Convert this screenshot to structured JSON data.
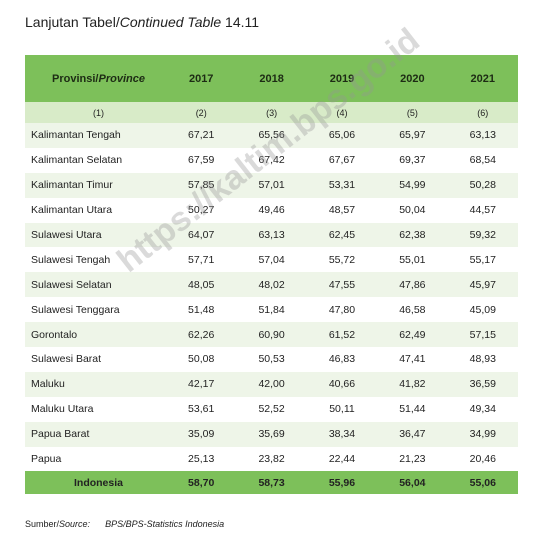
{
  "header": {
    "title_prefix": "Lanjutan Tabel/",
    "title_italic": "Continued Table",
    "title_suffix": " 14.11"
  },
  "table": {
    "province_label": "Provinsi/",
    "province_label_italic": "Province",
    "years": [
      "2017",
      "2018",
      "2019",
      "2020",
      "2021"
    ],
    "column_numbers": [
      "(1)",
      "(2)",
      "(3)",
      "(4)",
      "(5)",
      "(6)"
    ],
    "rows": [
      [
        "Kalimantan Tengah",
        "67,21",
        "65,56",
        "65,06",
        "65,97",
        "63,13"
      ],
      [
        "Kalimantan Selatan",
        "67,59",
        "67,42",
        "67,67",
        "69,37",
        "68,54"
      ],
      [
        "Kalimantan Timur",
        "57,85",
        "57,01",
        "53,31",
        "54,99",
        "50,28"
      ],
      [
        "Kalimantan Utara",
        "50,27",
        "49,46",
        "48,57",
        "50,04",
        "44,57"
      ],
      [
        "Sulawesi Utara",
        "64,07",
        "63,13",
        "62,45",
        "62,38",
        "59,32"
      ],
      [
        "Sulawesi Tengah",
        "57,71",
        "57,04",
        "55,72",
        "55,01",
        "55,17"
      ],
      [
        "Sulawesi Selatan",
        "48,05",
        "48,02",
        "47,55",
        "47,86",
        "45,97"
      ],
      [
        "Sulawesi Tenggara",
        "51,48",
        "51,84",
        "47,80",
        "46,58",
        "45,09"
      ],
      [
        "Gorontalo",
        "62,26",
        "60,90",
        "61,52",
        "62,49",
        "57,15"
      ],
      [
        "Sulawesi Barat",
        "50,08",
        "50,53",
        "46,83",
        "47,41",
        "48,93"
      ],
      [
        "Maluku",
        "42,17",
        "42,00",
        "40,66",
        "41,82",
        "36,59"
      ],
      [
        "Maluku Utara",
        "53,61",
        "52,52",
        "50,11",
        "51,44",
        "49,34"
      ],
      [
        "Papua Barat",
        "35,09",
        "35,69",
        "38,34",
        "36,47",
        "34,99"
      ],
      [
        "Papua",
        "25,13",
        "23,82",
        "22,44",
        "21,23",
        "20,46"
      ]
    ],
    "total": [
      "Indonesia",
      "58,70",
      "58,73",
      "55,96",
      "56,04",
      "55,06"
    ]
  },
  "footer": {
    "source_label": "Sumber/",
    "source_label_italic": "Source:",
    "source_text": "BPS/BPS-Statistics Indonesia"
  },
  "watermark": "https://kaltim.bps.go.id"
}
